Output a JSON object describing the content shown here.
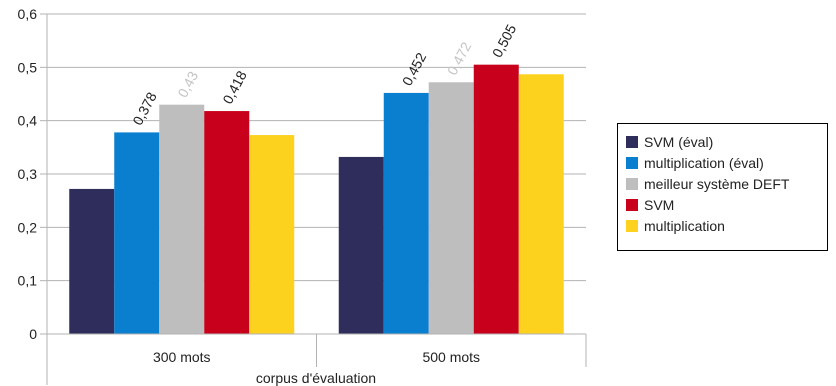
{
  "chart_data": {
    "type": "bar",
    "xlabel": "corpus d'évaluation",
    "ylabel": "",
    "ylim": [
      0,
      0.6
    ],
    "yticks": [
      "0",
      "0,1",
      "0,2",
      "0,3",
      "0,4",
      "0,5",
      "0,6"
    ],
    "categories": [
      "300 mots",
      "500 mots"
    ],
    "grid": "horizontal",
    "legend_position": "right",
    "series": [
      {
        "name": "SVM (éval)",
        "color": "#2e2d5c",
        "values": [
          0.272,
          0.332
        ],
        "labels": [
          "",
          ""
        ]
      },
      {
        "name": "multiplication (éval)",
        "color": "#0a7fd0",
        "values": [
          0.378,
          0.452
        ],
        "labels": [
          "0,378",
          "0,452"
        ]
      },
      {
        "name": "meilleur système DEFT",
        "color": "#bebebe",
        "values": [
          0.43,
          0.472
        ],
        "labels": [
          "0,43",
          "0,472"
        ]
      },
      {
        "name": "SVM",
        "color": "#c8001c",
        "values": [
          0.418,
          0.505
        ],
        "labels": [
          "0,418",
          "0,505"
        ]
      },
      {
        "name": "multiplication",
        "color": "#fdd21f",
        "values": [
          0.373,
          0.487
        ],
        "labels": [
          "",
          ""
        ]
      }
    ]
  }
}
